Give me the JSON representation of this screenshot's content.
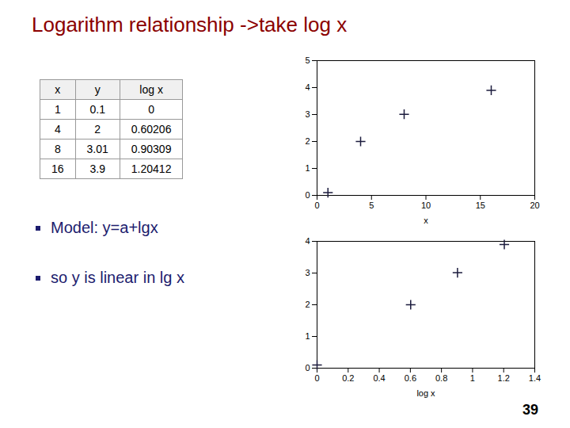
{
  "title": "Logarithm relationship ->take log x",
  "table": {
    "columns": [
      "x",
      "y",
      "log x"
    ],
    "rows": [
      [
        "1",
        "0.1",
        "0"
      ],
      [
        "4",
        "2",
        "0.60206"
      ],
      [
        "8",
        "3.01",
        "0.90309"
      ],
      [
        "16",
        "3.9",
        "1.20412"
      ]
    ]
  },
  "annotations": [
    "Model: y=a+lgx",
    "so y is linear in lg x"
  ],
  "page_number": "39",
  "chart_data": [
    {
      "type": "scatter",
      "x": [
        1,
        4,
        8,
        16
      ],
      "values": [
        0.1,
        2,
        3.01,
        3.9
      ],
      "xlabel": "x",
      "xlim": [
        0,
        20
      ],
      "ylim": [
        0,
        5
      ],
      "xticks": [
        0,
        5,
        10,
        15,
        20
      ],
      "yticks": [
        0,
        1,
        2,
        3,
        4,
        5
      ],
      "color": "#1C1C3E",
      "marker": "plus",
      "grid": false
    },
    {
      "type": "scatter",
      "x": [
        0,
        0.60206,
        0.90309,
        1.20412
      ],
      "values": [
        0.1,
        2,
        3.01,
        3.9
      ],
      "xlabel": "log x",
      "xlim": [
        0,
        1.4
      ],
      "ylim": [
        0,
        4
      ],
      "xticks": [
        0,
        0.2,
        0.4,
        0.6,
        0.8,
        1,
        1.2,
        1.4
      ],
      "yticks": [
        0,
        1,
        2,
        3,
        4
      ],
      "color": "#1C1C3E",
      "marker": "plus",
      "grid": false
    }
  ]
}
